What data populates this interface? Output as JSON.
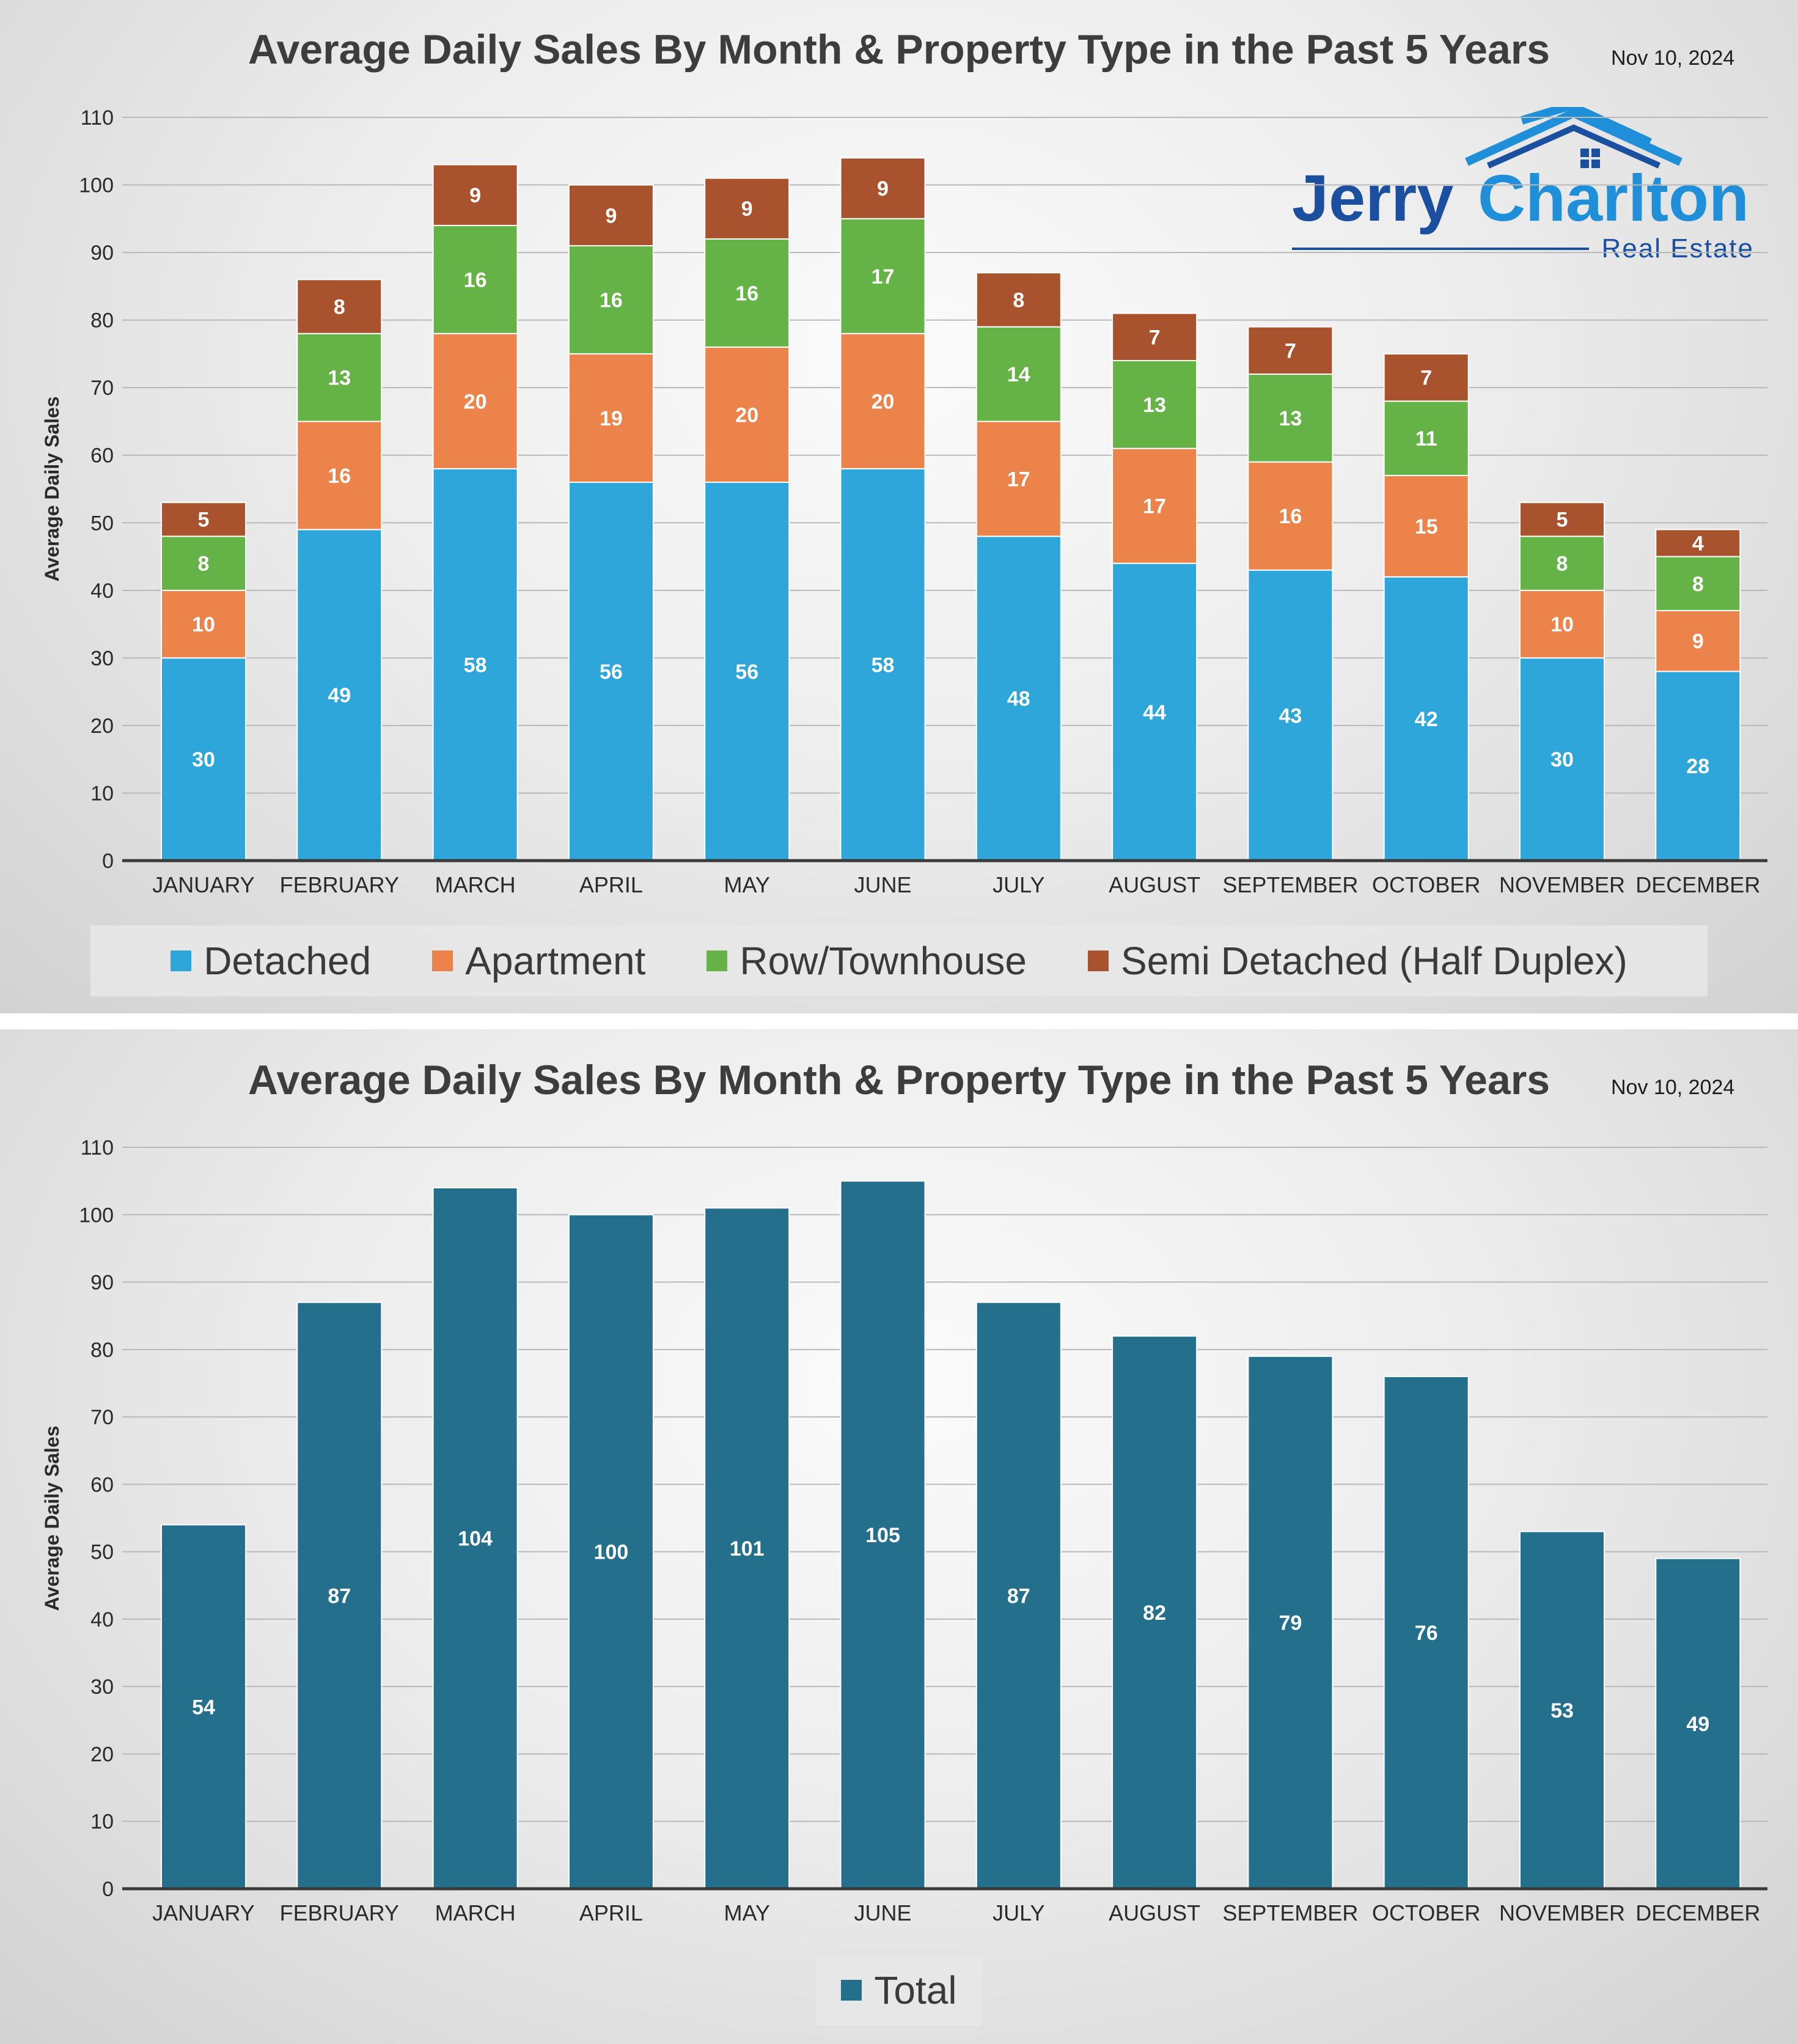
{
  "charts": [
    {
      "title": "Average Daily Sales By Month & Property Type in the Past 5 Years",
      "date": "Nov 10, 2024"
    },
    {
      "title": "Average Daily Sales By Month & Property Type in the Past 5 Years",
      "date": "Nov 10, 2024"
    }
  ],
  "logo": {
    "text_first": "Jerry",
    "text_second": "Charlton",
    "subtitle": "Real Estate",
    "colors": {
      "dark_blue": "#1b4fa0",
      "light_blue": "#1e8fd8"
    }
  },
  "chart_data": [
    {
      "type": "bar",
      "stacked": true,
      "ylabel": "Average Daily Sales",
      "xlabel": "",
      "ylim": [
        0,
        110
      ],
      "yticks": [
        0,
        10,
        20,
        30,
        40,
        50,
        60,
        70,
        80,
        90,
        100,
        110
      ],
      "grid": true,
      "legend": "bottom",
      "categories": [
        "JANUARY",
        "FEBRUARY",
        "MARCH",
        "APRIL",
        "MAY",
        "JUNE",
        "JULY",
        "AUGUST",
        "SEPTEMBER",
        "OCTOBER",
        "NOVEMBER",
        "DECEMBER"
      ],
      "series": [
        {
          "name": "Detached",
          "color": "#2ea6d9",
          "values": [
            30,
            49,
            58,
            56,
            56,
            58,
            48,
            44,
            43,
            42,
            30,
            28
          ]
        },
        {
          "name": "Apartment",
          "color": "#eb834b",
          "values": [
            10,
            16,
            20,
            19,
            20,
            20,
            17,
            17,
            16,
            15,
            10,
            9
          ]
        },
        {
          "name": "Row/Townhouse",
          "color": "#65b346",
          "values": [
            8,
            13,
            16,
            16,
            16,
            17,
            14,
            13,
            13,
            11,
            8,
            8
          ]
        },
        {
          "name": "Semi Detached (Half Duplex)",
          "color": "#a8532e",
          "values": [
            5,
            8,
            9,
            9,
            9,
            9,
            8,
            7,
            7,
            7,
            5,
            4
          ]
        }
      ]
    },
    {
      "type": "bar",
      "ylabel": "Average Daily Sales",
      "xlabel": "",
      "ylim": [
        0,
        110
      ],
      "yticks": [
        0,
        10,
        20,
        30,
        40,
        50,
        60,
        70,
        80,
        90,
        100,
        110
      ],
      "grid": true,
      "legend": "bottom",
      "categories": [
        "JANUARY",
        "FEBRUARY",
        "MARCH",
        "APRIL",
        "MAY",
        "JUNE",
        "JULY",
        "AUGUST",
        "SEPTEMBER",
        "OCTOBER",
        "NOVEMBER",
        "DECEMBER"
      ],
      "series": [
        {
          "name": "Total",
          "color": "#246f8c",
          "values": [
            54,
            87,
            104,
            100,
            101,
            105,
            87,
            82,
            79,
            76,
            53,
            49
          ]
        }
      ]
    }
  ]
}
